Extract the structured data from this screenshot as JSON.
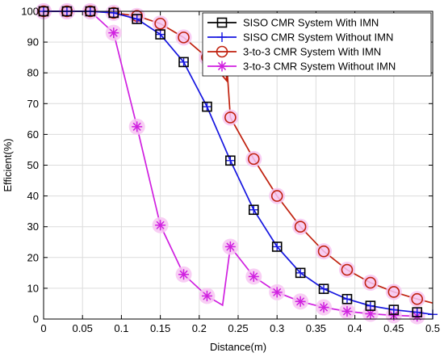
{
  "chart_data": {
    "type": "line",
    "title": "",
    "xlabel": "Distance(m)",
    "ylabel": "Efficient(%)",
    "xlim": [
      0,
      0.5
    ],
    "ylim": [
      0,
      100
    ],
    "xticks": [
      0,
      0.05,
      0.1,
      0.15,
      0.2,
      0.25,
      0.3,
      0.35,
      0.4,
      0.45,
      0.5
    ],
    "xtick_labels": [
      "0",
      "0.05",
      "0.1",
      "0.15",
      "0.2",
      "0.25",
      "0.3",
      "0.35",
      "0.4",
      "0.45",
      "0.5"
    ],
    "yticks": [
      0,
      10,
      20,
      30,
      40,
      50,
      60,
      70,
      80,
      90,
      100
    ],
    "ytick_labels": [
      "0",
      "10",
      "20",
      "30",
      "40",
      "50",
      "60",
      "70",
      "80",
      "90",
      "100"
    ],
    "grid": true,
    "legend_position": "top-right",
    "series": [
      {
        "name": "SISO CMR System With IMN",
        "color": "#000000",
        "marker": "square",
        "line": false,
        "x": [
          0,
          0.03,
          0.06,
          0.09,
          0.12,
          0.15,
          0.18,
          0.21,
          0.24,
          0.27,
          0.3,
          0.33,
          0.36,
          0.39,
          0.42,
          0.45,
          0.48
        ],
        "y": [
          100,
          100,
          100,
          99.5,
          97.5,
          92.5,
          83.5,
          69,
          51.5,
          35.5,
          23.5,
          15,
          9.8,
          6.5,
          4.3,
          3,
          2.2
        ]
      },
      {
        "name": "SISO CMR System Without IMN",
        "color": "#1515e0",
        "marker": "plus",
        "line": true,
        "x": [
          0,
          0.03,
          0.06,
          0.09,
          0.12,
          0.15,
          0.18,
          0.21,
          0.24,
          0.27,
          0.3,
          0.33,
          0.36,
          0.39,
          0.42,
          0.45,
          0.48,
          0.5
        ],
        "y": [
          100,
          100,
          100,
          99.5,
          97.5,
          92.5,
          83.5,
          69,
          51.5,
          35.5,
          23.5,
          15,
          9.8,
          6.5,
          4.3,
          3,
          2.2,
          1.5
        ]
      },
      {
        "name": "3-to-3 CMR System With IMN",
        "color": "#c0210e",
        "marker": "circle",
        "line": true,
        "x": [
          0,
          0.03,
          0.06,
          0.09,
          0.12,
          0.15,
          0.18,
          0.21,
          0.235,
          0.235,
          0.24,
          0.27,
          0.3,
          0.33,
          0.36,
          0.39,
          0.42,
          0.45,
          0.48,
          0.5
        ],
        "y": [
          100,
          100,
          100,
          99.5,
          98.5,
          96,
          91.5,
          85,
          77.5,
          84,
          65.5,
          52,
          40,
          30,
          22,
          16,
          11.8,
          8.8,
          6.5,
          5.2
        ],
        "marked_points": [
          0,
          1,
          2,
          3,
          4,
          5,
          6,
          7,
          10,
          11,
          12,
          13,
          14,
          15,
          16,
          17,
          18
        ]
      },
      {
        "name": "3-to-3 CMR System Without IMN",
        "color": "#d020e0",
        "marker": "asterisk",
        "line": true,
        "x": [
          0,
          0.03,
          0.06,
          0.09,
          0.12,
          0.15,
          0.18,
          0.21,
          0.23,
          0.24,
          0.27,
          0.3,
          0.33,
          0.36,
          0.39,
          0.42,
          0.45,
          0.48
        ],
        "y": [
          100,
          100,
          100,
          93,
          62.5,
          30.5,
          14.5,
          7.5,
          4.5,
          23.5,
          13.8,
          8.7,
          5.7,
          3.8,
          2.5,
          1.7,
          1.2,
          0.9
        ],
        "marked_points": [
          0,
          1,
          2,
          3,
          4,
          5,
          6,
          7,
          9,
          10,
          11,
          12,
          13,
          14,
          15,
          16,
          17
        ]
      }
    ]
  }
}
